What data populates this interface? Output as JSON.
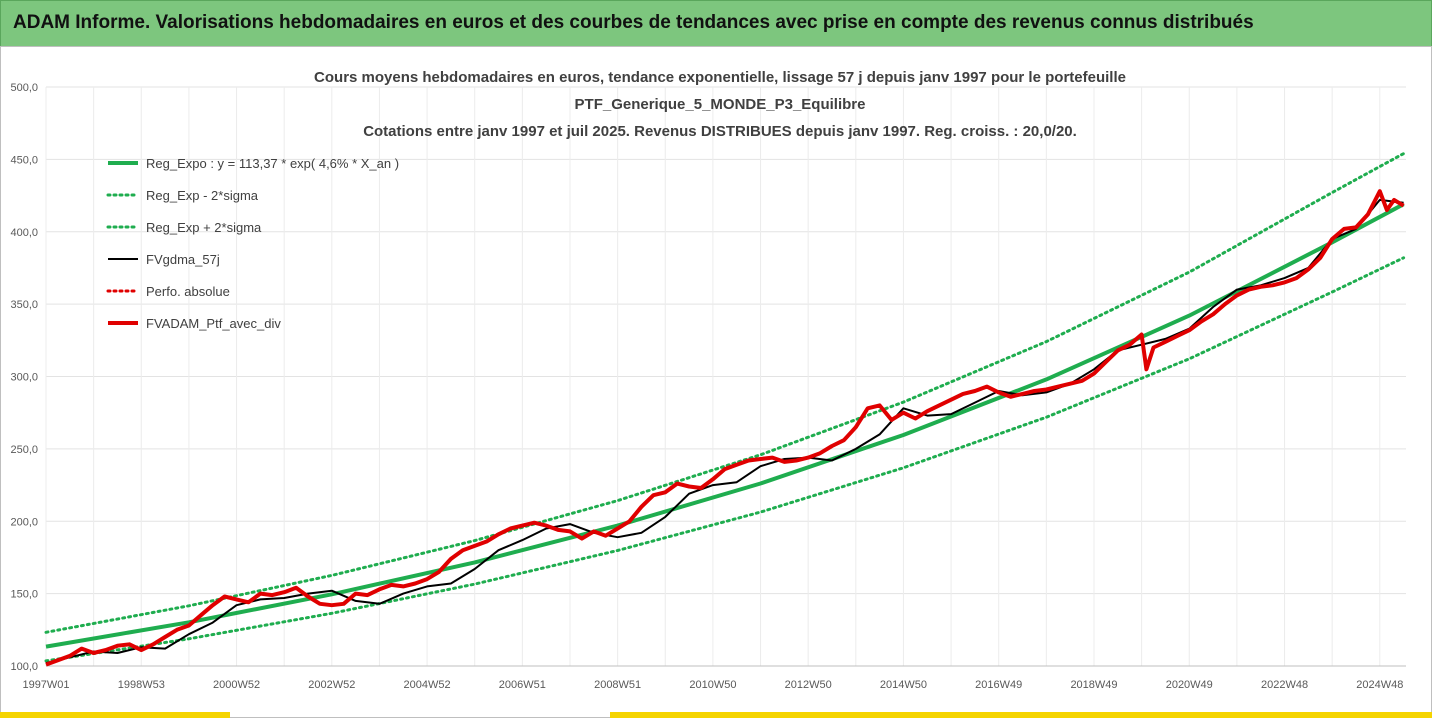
{
  "header": {
    "title": "ADAM Informe. Valorisations hebdomadaires en euros et des courbes de tendances avec prise en compte des revenus connus distribués"
  },
  "chart_data": {
    "type": "line",
    "title_lines": [
      "Cours moyens hebdomadaires en euros, tendance exponentielle, lissage 57 j depuis janv 1997 pour le portefeuille",
      "PTF_Generique_5_MONDE_P3_Equilibre",
      "Cotations entre janv 1997 et juil 2025. Revenus DISTRIBUES depuis janv 1997. Reg. croiss. : 20,0/20."
    ],
    "xlabel": "",
    "ylabel": "",
    "ylim": [
      100,
      500
    ],
    "xlim": [
      1997.0,
      2025.55
    ],
    "y_ticks": [
      "100,0",
      "150,0",
      "200,0",
      "250,0",
      "300,0",
      "350,0",
      "400,0",
      "450,0",
      "500,0"
    ],
    "x_ticks": [
      {
        "label": "1997W01",
        "year": 1997.0
      },
      {
        "label": "1998W53",
        "year": 1999.0
      },
      {
        "label": "2000W52",
        "year": 2001.0
      },
      {
        "label": "2002W52",
        "year": 2003.0
      },
      {
        "label": "2004W52",
        "year": 2005.0
      },
      {
        "label": "2006W51",
        "year": 2007.0
      },
      {
        "label": "2008W51",
        "year": 2009.0
      },
      {
        "label": "2010W50",
        "year": 2011.0
      },
      {
        "label": "2012W50",
        "year": 2013.0
      },
      {
        "label": "2014W50",
        "year": 2015.0
      },
      {
        "label": "2016W49",
        "year": 2017.0
      },
      {
        "label": "2018W49",
        "year": 2019.0
      },
      {
        "label": "2020W49",
        "year": 2021.0
      },
      {
        "label": "2022W48",
        "year": 2023.0
      },
      {
        "label": "2024W48",
        "year": 2025.0
      }
    ],
    "grid": true,
    "legend_position": "top-left",
    "series": [
      {
        "name": "Reg_Expo : y = 113,37 * exp( 4,6% *  X_an )",
        "color": "#1fad4f",
        "style": "solid-thick",
        "x": [
          1997,
          2000,
          2003,
          2006,
          2009,
          2012,
          2015,
          2018,
          2021,
          2024,
          2025.5
        ],
        "values": [
          113.4,
          130.2,
          149.5,
          171.6,
          197.0,
          226.1,
          259.6,
          298.0,
          342.1,
          392.7,
          419.0
        ]
      },
      {
        "name": "Reg_Exp - 2*sigma",
        "color": "#1fad4f",
        "style": "dotted",
        "x": [
          1997,
          2000,
          2003,
          2006,
          2009,
          2012,
          2015,
          2018,
          2021,
          2024,
          2025.5
        ],
        "values": [
          103.5,
          118.8,
          136.4,
          156.6,
          179.8,
          206.3,
          236.9,
          271.9,
          312.2,
          358.4,
          382.0
        ]
      },
      {
        "name": "Reg_Exp + 2*sigma",
        "color": "#1fad4f",
        "style": "dotted",
        "x": [
          1997,
          2000,
          2003,
          2006,
          2009,
          2012,
          2015,
          2018,
          2021,
          2024,
          2025.5
        ],
        "values": [
          123.3,
          141.6,
          162.6,
          186.6,
          214.3,
          245.9,
          282.3,
          324.1,
          372.1,
          427.1,
          454.0
        ]
      },
      {
        "name": "FVgdma_57j",
        "color": "#000000",
        "style": "solid",
        "x": [
          1997.0,
          1997.5,
          1998.0,
          1998.5,
          1999.0,
          1999.5,
          2000.0,
          2000.5,
          2001.0,
          2001.5,
          2002.0,
          2002.5,
          2003.0,
          2003.5,
          2004.0,
          2004.5,
          2005.0,
          2005.5,
          2006.0,
          2006.5,
          2007.0,
          2007.5,
          2008.0,
          2008.5,
          2009.0,
          2009.5,
          2010.0,
          2010.5,
          2011.0,
          2011.5,
          2012.0,
          2012.5,
          2013.0,
          2013.5,
          2014.0,
          2014.5,
          2015.0,
          2015.5,
          2016.0,
          2016.5,
          2017.0,
          2017.5,
          2018.0,
          2018.5,
          2019.0,
          2019.5,
          2020.0,
          2020.5,
          2021.0,
          2021.5,
          2022.0,
          2022.5,
          2023.0,
          2023.5,
          2024.0,
          2024.5,
          2025.0,
          2025.5
        ],
        "values": [
          102,
          106,
          110,
          109,
          113,
          112,
          122,
          130,
          142,
          146,
          147,
          150,
          152,
          145,
          143,
          150,
          155,
          157,
          167,
          180,
          187,
          195,
          198,
          192,
          189,
          192,
          203,
          219,
          225,
          227,
          238,
          243,
          244,
          242,
          250,
          260,
          278,
          273,
          274,
          282,
          290,
          287,
          289,
          295,
          305,
          318,
          322,
          326,
          333,
          348,
          360,
          363,
          368,
          375,
          395,
          402,
          422,
          420
        ]
      },
      {
        "name": "Perfo. absolue",
        "color": "#e00000",
        "style": "dotted",
        "x": [],
        "values": []
      },
      {
        "name": "FVADAM_Ptf_avec_div",
        "color": "#e00000",
        "style": "solid-thick",
        "x": [
          1997.0,
          1997.25,
          1997.5,
          1997.75,
          1998.0,
          1998.25,
          1998.5,
          1998.75,
          1999.0,
          1999.25,
          1999.5,
          1999.75,
          2000.0,
          2000.25,
          2000.5,
          2000.75,
          2001.0,
          2001.25,
          2001.5,
          2001.75,
          2002.0,
          2002.25,
          2002.5,
          2002.75,
          2003.0,
          2003.25,
          2003.5,
          2003.75,
          2004.0,
          2004.25,
          2004.5,
          2004.75,
          2005.0,
          2005.25,
          2005.5,
          2005.75,
          2006.0,
          2006.25,
          2006.5,
          2006.75,
          2007.0,
          2007.25,
          2007.5,
          2007.75,
          2008.0,
          2008.25,
          2008.5,
          2008.75,
          2009.0,
          2009.25,
          2009.5,
          2009.75,
          2010.0,
          2010.25,
          2010.5,
          2010.75,
          2011.0,
          2011.25,
          2011.5,
          2011.75,
          2012.0,
          2012.25,
          2012.5,
          2012.75,
          2013.0,
          2013.25,
          2013.5,
          2013.75,
          2014.0,
          2014.25,
          2014.5,
          2014.75,
          2015.0,
          2015.25,
          2015.5,
          2015.75,
          2016.0,
          2016.25,
          2016.5,
          2016.75,
          2017.0,
          2017.25,
          2017.5,
          2017.75,
          2018.0,
          2018.25,
          2018.5,
          2018.75,
          2019.0,
          2019.25,
          2019.5,
          2019.75,
          2020.0,
          2020.1,
          2020.25,
          2020.5,
          2020.75,
          2021.0,
          2021.25,
          2021.5,
          2021.75,
          2022.0,
          2022.25,
          2022.5,
          2022.75,
          2023.0,
          2023.25,
          2023.5,
          2023.75,
          2024.0,
          2024.25,
          2024.5,
          2024.75,
          2025.0,
          2025.15,
          2025.3,
          2025.5
        ],
        "values": [
          101,
          104,
          107,
          112,
          109,
          111,
          114,
          115,
          111,
          115,
          120,
          125,
          128,
          135,
          142,
          148,
          146,
          144,
          150,
          149,
          151,
          154,
          148,
          143,
          142,
          143,
          150,
          149,
          153,
          156,
          155,
          157,
          160,
          165,
          174,
          180,
          183,
          186,
          191,
          195,
          197,
          199,
          197,
          194,
          193,
          188,
          193,
          190,
          195,
          200,
          210,
          218,
          220,
          226,
          224,
          223,
          229,
          236,
          239,
          242,
          243,
          244,
          241,
          242,
          244,
          247,
          252,
          256,
          265,
          278,
          280,
          270,
          275,
          271,
          276,
          280,
          284,
          288,
          290,
          293,
          289,
          286,
          288,
          290,
          291,
          293,
          295,
          297,
          302,
          310,
          318,
          322,
          329,
          305,
          320,
          324,
          328,
          332,
          338,
          343,
          350,
          356,
          360,
          362,
          363,
          365,
          368,
          374,
          382,
          395,
          402,
          403,
          412,
          428,
          415,
          422,
          418
        ]
      }
    ]
  }
}
